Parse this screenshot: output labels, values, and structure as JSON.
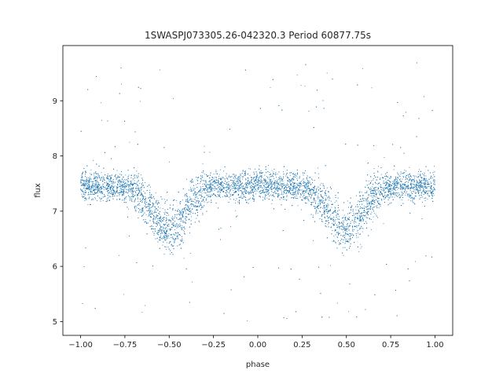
{
  "chart_data": {
    "type": "scatter",
    "title": "1SWASPJ073305.26-042320.3 Period 60877.75s",
    "xlabel": "phase",
    "ylabel": "flux",
    "xlim": [
      -1.1,
      1.1
    ],
    "ylim": [
      4.75,
      10.0
    ],
    "x_ticks": [
      -1.0,
      -0.75,
      -0.5,
      -0.25,
      0.0,
      0.25,
      0.5,
      0.75,
      1.0
    ],
    "x_tick_labels": [
      "−1.00",
      "−0.75",
      "−0.50",
      "−0.25",
      "0.00",
      "0.25",
      "0.50",
      "0.75",
      "1.00"
    ],
    "y_ticks": [
      5,
      6,
      7,
      8,
      9
    ],
    "y_tick_labels": [
      "5",
      "6",
      "7",
      "8",
      "9"
    ],
    "grid": false,
    "marker_color": "#1f77b4",
    "series": [
      {
        "x_range": [
          -1.0,
          1.0
        ],
        "baseline_flux": 7.45,
        "eclipses": [
          {
            "phase": -0.5,
            "min_flux": 6.65,
            "width": 0.09
          },
          {
            "phase": 0.5,
            "min_flux": 6.65,
            "width": 0.09
          }
        ],
        "scatter_sigma": 0.13,
        "outlier_range": [
          5.0,
          9.7
        ]
      }
    ]
  }
}
